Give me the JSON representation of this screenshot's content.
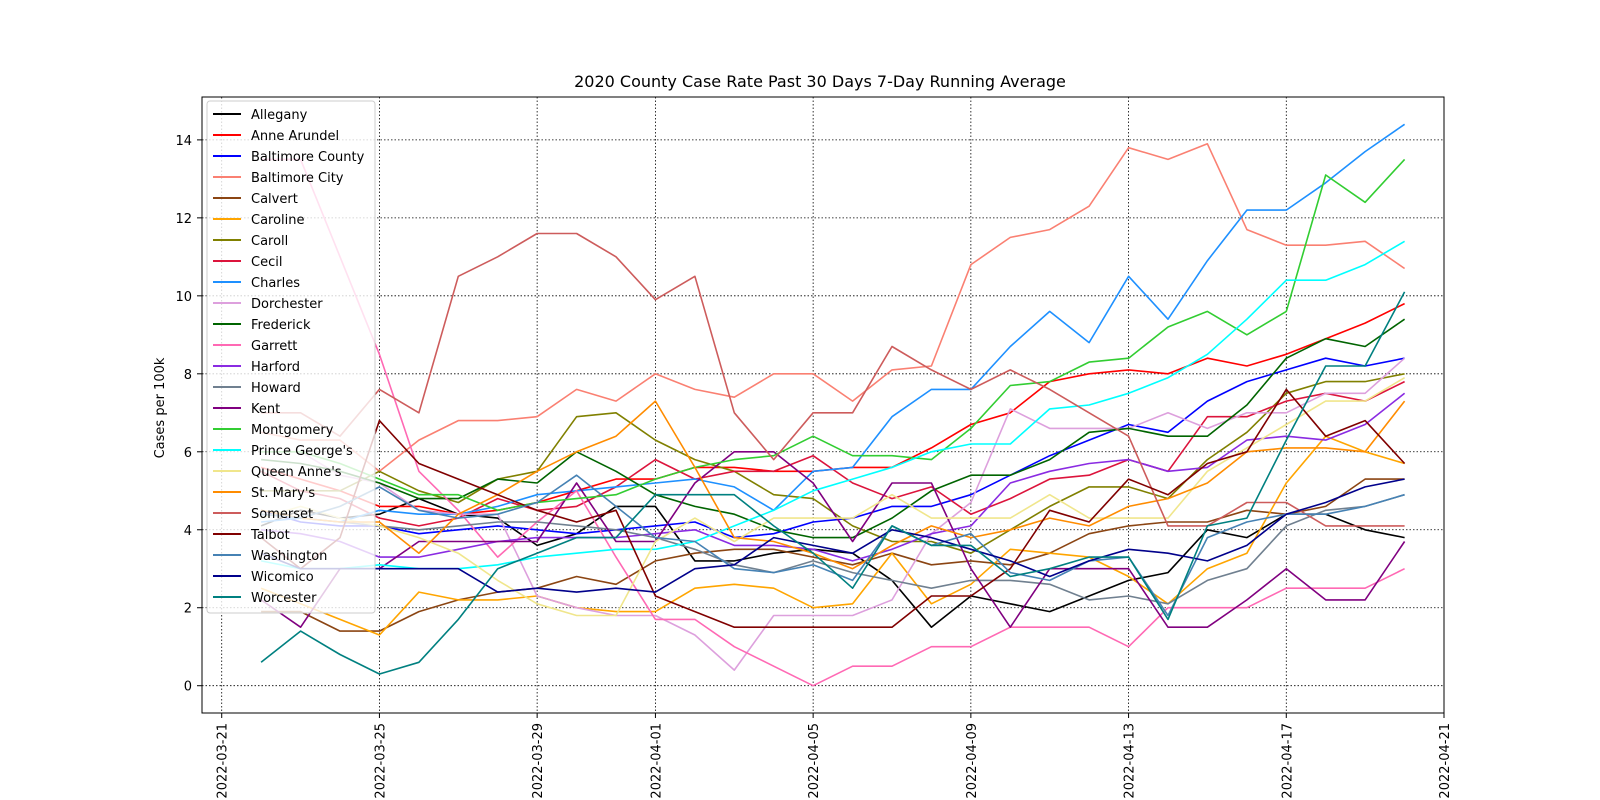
{
  "chart_data": {
    "type": "line",
    "title": "2020 County Case Rate  Past 30 Days 7-Day Running Average",
    "xlabel": "",
    "ylabel": "Cases per 100k",
    "xlim": [
      "2022-03-20T12:00",
      "2022-04-21"
    ],
    "ylim": [
      -0.7,
      15.1
    ],
    "yticks": [
      0,
      2,
      4,
      6,
      8,
      10,
      12,
      14
    ],
    "xticks": [
      "2022-03-21",
      "2022-03-25",
      "2022-03-29",
      "2022-04-01",
      "2022-04-05",
      "2022-04-09",
      "2022-04-13",
      "2022-04-17",
      "2022-04-21"
    ],
    "grid": true,
    "legend_position": "upper-left",
    "x": [
      "2022-03-22",
      "2022-03-23",
      "2022-03-24",
      "2022-03-25",
      "2022-03-26",
      "2022-03-27",
      "2022-03-28",
      "2022-03-29",
      "2022-03-30",
      "2022-03-31",
      "2022-04-01",
      "2022-04-02",
      "2022-04-03",
      "2022-04-04",
      "2022-04-05",
      "2022-04-06",
      "2022-04-07",
      "2022-04-08",
      "2022-04-09",
      "2022-04-10",
      "2022-04-11",
      "2022-04-12",
      "2022-04-13",
      "2022-04-14",
      "2022-04-15",
      "2022-04-16",
      "2022-04-17",
      "2022-04-18",
      "2022-04-19",
      "2022-04-20"
    ],
    "series": [
      {
        "name": "Allegany",
        "color": "#000000",
        "values": [
          4.1,
          4.5,
          4.3,
          4.4,
          4.8,
          4.4,
          4.3,
          3.6,
          3.9,
          4.6,
          4.6,
          3.2,
          3.2,
          3.4,
          3.5,
          3.4,
          2.7,
          1.5,
          2.3,
          2.1,
          1.9,
          2.3,
          2.7,
          2.9,
          4.0,
          3.8,
          4.4,
          4.4,
          4.0,
          3.8
        ]
      },
      {
        "name": "Anne Arundel",
        "color": "#ff0000",
        "values": [
          5.6,
          5.3,
          5.0,
          4.6,
          4.6,
          4.4,
          4.5,
          4.7,
          5.0,
          5.3,
          5.3,
          5.6,
          5.6,
          5.5,
          5.5,
          5.6,
          5.6,
          6.1,
          6.7,
          7.0,
          7.8,
          8.0,
          8.1,
          8.0,
          8.4,
          8.2,
          8.5,
          8.9,
          9.3,
          9.8
        ]
      },
      {
        "name": "Baltimore County",
        "color": "#0000ff",
        "values": [
          4.5,
          4.2,
          4.1,
          4.1,
          3.9,
          4.0,
          4.1,
          4.0,
          3.9,
          4.0,
          4.1,
          4.2,
          3.8,
          3.9,
          4.2,
          4.3,
          4.6,
          4.6,
          4.9,
          5.4,
          5.9,
          6.3,
          6.7,
          6.5,
          7.3,
          7.8,
          8.1,
          8.4,
          8.2,
          8.4
        ]
      },
      {
        "name": "Baltimore City",
        "color": "#fa8072",
        "values": [
          6.5,
          6.3,
          6.3,
          5.5,
          6.3,
          6.8,
          6.8,
          6.9,
          7.6,
          7.3,
          8.0,
          7.6,
          7.4,
          8.0,
          8.0,
          7.3,
          8.1,
          8.2,
          10.8,
          11.5,
          11.7,
          12.3,
          13.8,
          13.5,
          13.9,
          11.7,
          11.3,
          11.3,
          11.4,
          10.7
        ]
      },
      {
        "name": "Calvert",
        "color": "#8b4513",
        "values": [
          1.9,
          1.9,
          1.4,
          1.4,
          1.9,
          2.2,
          2.4,
          2.5,
          2.8,
          2.6,
          3.2,
          3.4,
          3.5,
          3.5,
          3.3,
          3.1,
          3.4,
          3.1,
          3.2,
          3.1,
          3.4,
          3.9,
          4.1,
          4.2,
          4.2,
          4.5,
          4.4,
          4.6,
          5.3,
          5.3
        ]
      },
      {
        "name": "Caroline",
        "color": "#ffa500",
        "values": [
          2.5,
          2.1,
          1.7,
          1.3,
          2.4,
          2.2,
          2.2,
          2.3,
          2.0,
          1.9,
          1.9,
          2.5,
          2.6,
          2.5,
          2.0,
          2.1,
          3.4,
          2.1,
          2.6,
          3.5,
          3.4,
          3.3,
          2.8,
          2.1,
          3.0,
          3.4,
          5.2,
          6.4,
          6.0,
          5.7
        ]
      },
      {
        "name": "Caroll",
        "color": "#808000",
        "values": [
          5.0,
          5.0,
          5.0,
          5.5,
          5.0,
          4.7,
          5.3,
          5.5,
          6.9,
          7.0,
          6.3,
          5.8,
          5.5,
          4.9,
          4.8,
          4.1,
          3.7,
          3.7,
          3.4,
          4.0,
          4.6,
          5.1,
          5.1,
          4.8,
          5.8,
          6.5,
          7.5,
          7.8,
          7.8,
          8.0
        ]
      },
      {
        "name": "Cecil",
        "color": "#dc143c",
        "values": [
          5.5,
          5.0,
          4.8,
          4.3,
          4.1,
          4.3,
          4.8,
          4.5,
          4.6,
          5.1,
          5.8,
          5.3,
          5.5,
          5.5,
          5.9,
          5.2,
          4.8,
          5.1,
          4.4,
          4.8,
          5.3,
          5.4,
          5.8,
          5.5,
          6.9,
          6.9,
          7.3,
          7.5,
          7.3,
          7.8
        ]
      },
      {
        "name": "Charles",
        "color": "#1e90ff",
        "values": [
          4.2,
          4.3,
          4.2,
          4.5,
          4.4,
          4.4,
          4.6,
          4.9,
          5.0,
          5.1,
          5.2,
          5.3,
          5.1,
          4.5,
          5.5,
          5.6,
          6.9,
          7.6,
          7.6,
          8.7,
          9.6,
          8.8,
          10.5,
          9.4,
          10.9,
          12.2,
          12.2,
          12.9,
          13.7,
          14.4
        ]
      },
      {
        "name": "Dorchester",
        "color": "#dda0dd",
        "values": [
          6.0,
          6.0,
          5.4,
          5.2,
          4.5,
          4.4,
          4.4,
          2.3,
          2.0,
          1.8,
          1.8,
          1.3,
          0.4,
          1.8,
          1.8,
          1.8,
          2.2,
          3.9,
          4.7,
          7.1,
          6.6,
          6.6,
          6.6,
          7.0,
          6.6,
          7.0,
          7.0,
          7.5,
          7.5,
          8.4
        ]
      },
      {
        "name": "Frederick",
        "color": "#006400",
        "values": [
          5.8,
          5.7,
          5.5,
          5.2,
          4.8,
          4.8,
          5.3,
          5.2,
          6.0,
          5.5,
          4.9,
          4.6,
          4.4,
          4.0,
          3.8,
          3.8,
          4.3,
          5.0,
          5.4,
          5.4,
          5.8,
          6.5,
          6.6,
          6.4,
          6.4,
          7.2,
          8.4,
          8.9,
          8.7,
          9.4
        ]
      },
      {
        "name": "Garrett",
        "color": "#ff69b4",
        "values": [
          13.5,
          13.5,
          11.0,
          8.5,
          5.5,
          4.5,
          3.3,
          4.2,
          5.0,
          3.3,
          1.7,
          1.7,
          1.0,
          0.5,
          0.0,
          0.5,
          0.5,
          1.0,
          1.0,
          1.5,
          1.5,
          1.5,
          1.0,
          2.0,
          2.0,
          2.0,
          2.5,
          2.5,
          2.5,
          3.0
        ]
      },
      {
        "name": "Harford",
        "color": "#8a2be2",
        "values": [
          4.0,
          3.9,
          3.7,
          3.3,
          3.3,
          3.5,
          3.7,
          3.8,
          3.8,
          3.8,
          3.9,
          4.0,
          3.6,
          3.6,
          3.5,
          3.2,
          3.5,
          3.9,
          4.1,
          5.2,
          5.5,
          5.7,
          5.8,
          5.5,
          5.6,
          6.3,
          6.4,
          6.3,
          6.7,
          7.5
        ]
      },
      {
        "name": "Howard",
        "color": "#708090",
        "values": [
          4.4,
          4.3,
          4.2,
          4.1,
          4.0,
          4.1,
          4.2,
          4.2,
          4.1,
          4.0,
          3.8,
          3.5,
          3.1,
          2.9,
          3.2,
          2.9,
          2.7,
          2.5,
          2.7,
          2.7,
          2.6,
          2.2,
          2.3,
          2.1,
          2.7,
          3.0,
          4.1,
          4.5,
          4.6,
          4.9
        ]
      },
      {
        "name": "Kent",
        "color": "#800080",
        "values": [
          2.2,
          1.5,
          3.0,
          3.0,
          3.7,
          3.7,
          3.7,
          3.7,
          5.2,
          3.7,
          3.7,
          5.2,
          6.0,
          6.0,
          5.2,
          3.7,
          5.2,
          5.2,
          3.0,
          1.5,
          3.0,
          3.0,
          3.0,
          1.5,
          1.5,
          2.2,
          3.0,
          2.2,
          2.2,
          3.7
        ]
      },
      {
        "name": "Montgomery",
        "color": "#32cd32",
        "values": [
          6.0,
          6.0,
          5.7,
          5.3,
          4.9,
          4.9,
          4.5,
          4.7,
          4.8,
          4.9,
          5.3,
          5.6,
          5.8,
          5.9,
          6.4,
          5.9,
          5.9,
          5.8,
          6.6,
          7.7,
          7.8,
          8.3,
          8.4,
          9.2,
          9.6,
          9.0,
          9.6,
          13.1,
          12.4,
          13.5
        ]
      },
      {
        "name": "Prince George's",
        "color": "#00ffff",
        "values": [
          3.2,
          3.0,
          3.0,
          3.1,
          3.0,
          3.0,
          3.1,
          3.3,
          3.4,
          3.5,
          3.5,
          3.7,
          4.1,
          4.5,
          5.0,
          5.3,
          5.6,
          6.0,
          6.2,
          6.2,
          7.1,
          7.2,
          7.5,
          7.9,
          8.5,
          9.4,
          10.4,
          10.4,
          10.8,
          11.4
        ]
      },
      {
        "name": "Queen Anne's",
        "color": "#f0e68c",
        "values": [
          4.3,
          4.6,
          4.3,
          4.1,
          3.8,
          3.4,
          2.7,
          2.1,
          1.8,
          1.8,
          3.7,
          4.3,
          3.7,
          4.3,
          4.3,
          4.3,
          4.9,
          4.3,
          4.3,
          4.3,
          4.9,
          4.3,
          4.3,
          4.3,
          5.5,
          6.1,
          6.7,
          7.3,
          7.3,
          7.9
        ]
      },
      {
        "name": "St. Mary's",
        "color": "#ff8c00",
        "values": [
          4.5,
          4.3,
          4.2,
          4.2,
          3.4,
          4.4,
          4.9,
          5.5,
          6.0,
          6.4,
          7.3,
          5.6,
          3.8,
          3.7,
          3.4,
          3.0,
          3.6,
          4.1,
          3.8,
          4.0,
          4.3,
          4.1,
          4.6,
          4.8,
          5.2,
          6.0,
          6.1,
          6.1,
          6.0,
          7.3
        ]
      },
      {
        "name": "Somerset",
        "color": "#cd5c5c",
        "values": [
          7.0,
          7.0,
          6.4,
          7.6,
          7.0,
          10.5,
          11.0,
          11.6,
          11.6,
          11.0,
          9.9,
          10.5,
          7.0,
          5.8,
          7.0,
          7.0,
          8.7,
          8.1,
          7.6,
          8.1,
          7.6,
          7.0,
          6.4,
          4.1,
          4.1,
          4.7,
          4.7,
          4.1,
          4.1,
          4.1
        ]
      },
      {
        "name": "Talbot",
        "color": "#800000",
        "values": [
          3.8,
          3.0,
          3.8,
          6.8,
          5.7,
          5.3,
          4.9,
          4.5,
          4.2,
          4.5,
          2.3,
          1.9,
          1.5,
          1.5,
          1.5,
          1.5,
          1.5,
          2.3,
          2.3,
          3.0,
          4.5,
          4.2,
          5.3,
          4.9,
          5.7,
          6.0,
          7.6,
          6.4,
          6.8,
          5.7
        ]
      },
      {
        "name": "Washington",
        "color": "#4682b4",
        "values": [
          4.4,
          4.3,
          4.6,
          5.1,
          4.5,
          4.3,
          4.4,
          4.7,
          5.4,
          4.6,
          3.8,
          3.7,
          3.0,
          2.9,
          3.1,
          2.7,
          4.1,
          3.6,
          3.9,
          2.9,
          2.7,
          3.2,
          3.3,
          1.8,
          3.8,
          4.2,
          4.4,
          4.4,
          4.6,
          4.9
        ]
      },
      {
        "name": "Wicomico",
        "color": "#00008b",
        "values": [
          3.4,
          3.0,
          3.0,
          3.0,
          3.0,
          3.0,
          2.4,
          2.5,
          2.4,
          2.5,
          2.4,
          3.0,
          3.1,
          3.8,
          3.6,
          3.4,
          4.0,
          3.8,
          3.5,
          3.2,
          2.8,
          3.2,
          3.5,
          3.4,
          3.2,
          3.6,
          4.4,
          4.7,
          5.1,
          5.3
        ]
      },
      {
        "name": "Worcester",
        "color": "#008080",
        "values": [
          0.6,
          1.4,
          0.8,
          0.3,
          0.6,
          1.7,
          3.0,
          3.4,
          3.8,
          3.8,
          4.9,
          4.9,
          4.9,
          4.1,
          3.4,
          2.5,
          4.1,
          3.6,
          3.6,
          2.8,
          3.0,
          3.3,
          3.3,
          1.7,
          4.1,
          4.3,
          6.3,
          8.2,
          8.2,
          10.1
        ]
      }
    ]
  }
}
